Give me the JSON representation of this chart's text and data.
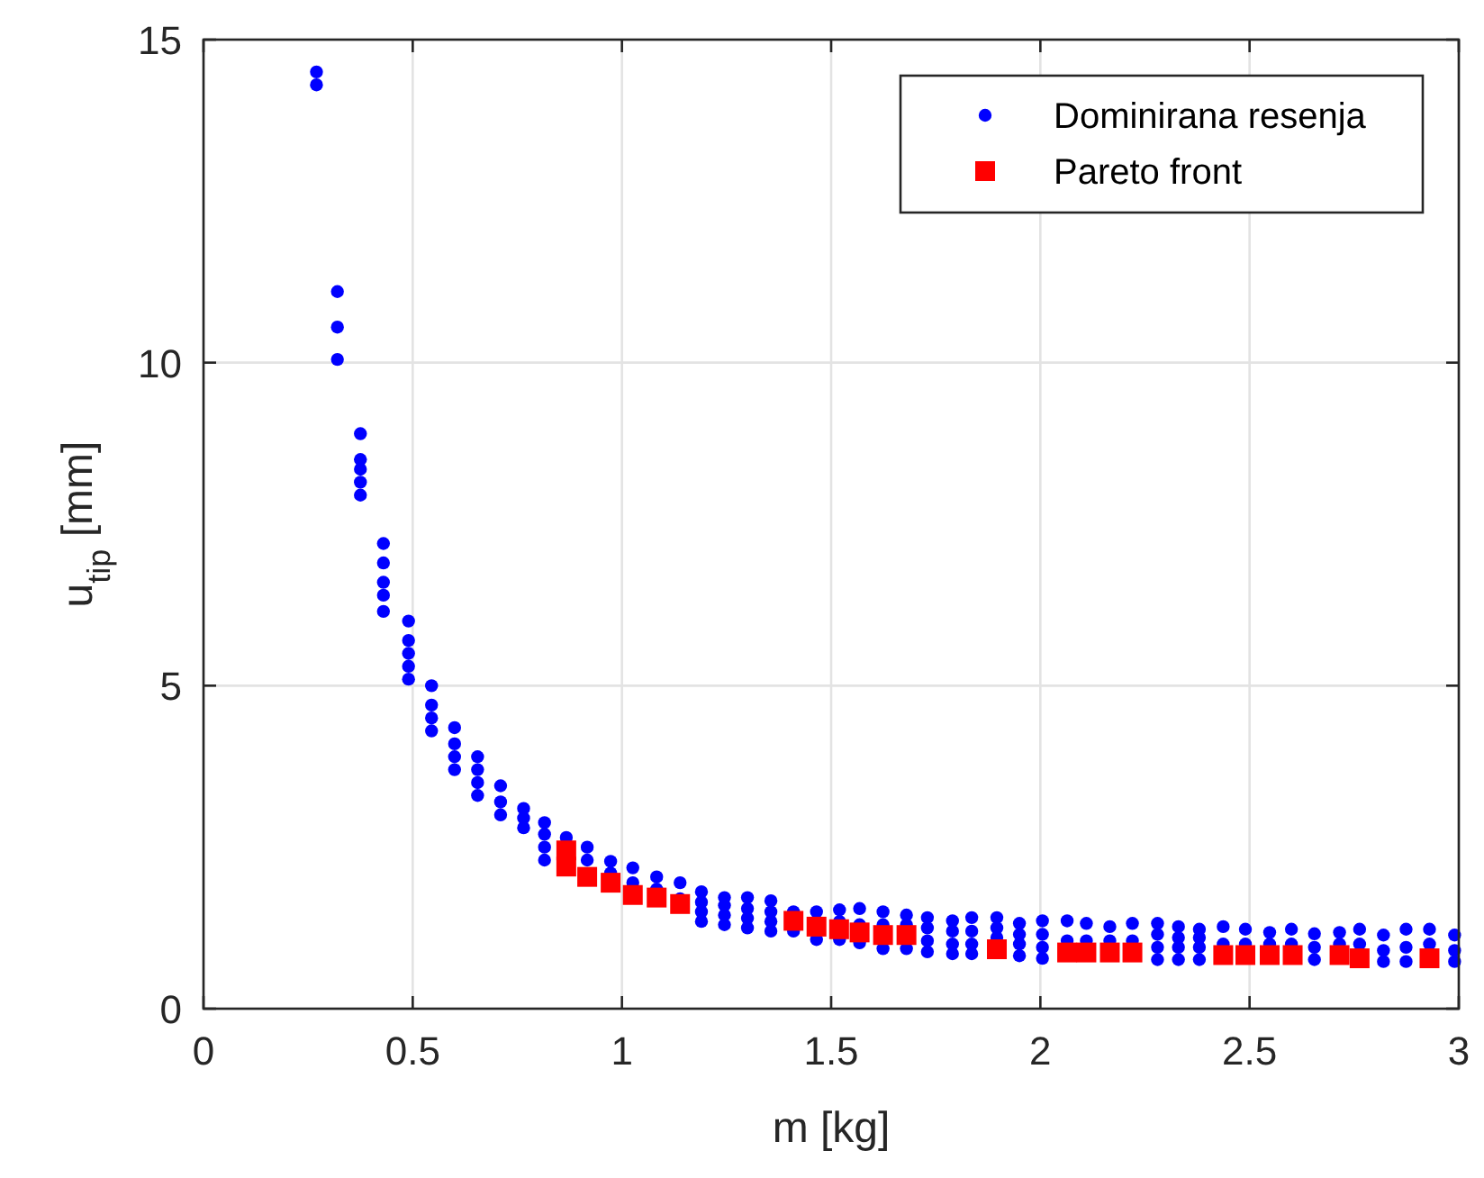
{
  "chart_data": {
    "type": "scatter",
    "xlabel": "m [kg]",
    "ylabel": "u$_{tip}$ [mm]",
    "xlim": [
      0,
      3
    ],
    "xticks": [
      0,
      0.5,
      1,
      1.5,
      2,
      2.5,
      3
    ],
    "ylim": [
      0,
      15
    ],
    "yticks": [
      0,
      5,
      10,
      15
    ],
    "grid": true,
    "legend": "top right",
    "series": [
      {
        "name": "Dominirana resenja",
        "color": "#0000ff",
        "marker": "circle",
        "x": [
          0.27,
          0.27,
          0.32,
          0.32,
          0.32,
          0.375,
          0.375,
          0.375,
          0.375,
          0.375,
          0.43,
          0.43,
          0.43,
          0.43,
          0.43,
          0.49,
          0.49,
          0.49,
          0.49,
          0.49,
          0.545,
          0.545,
          0.545,
          0.545,
          0.6,
          0.6,
          0.6,
          0.6,
          0.655,
          0.655,
          0.655,
          0.655,
          0.71,
          0.71,
          0.71,
          0.765,
          0.765,
          0.765,
          0.815,
          0.815,
          0.815,
          0.815,
          0.867,
          0.917,
          0.917,
          0.973,
          0.973,
          1.026,
          1.026,
          1.083,
          1.083,
          1.139,
          1.139,
          1.19,
          1.19,
          1.19,
          1.19,
          1.245,
          1.245,
          1.245,
          1.245,
          1.3,
          1.3,
          1.3,
          1.3,
          1.356,
          1.356,
          1.356,
          1.356,
          1.41,
          1.41,
          1.465,
          1.465,
          1.52,
          1.52,
          1.52,
          1.568,
          1.568,
          1.568,
          1.624,
          1.624,
          1.624,
          1.68,
          1.68,
          1.68,
          1.73,
          1.73,
          1.73,
          1.73,
          1.79,
          1.79,
          1.79,
          1.79,
          1.836,
          1.836,
          1.836,
          1.836,
          1.896,
          1.896,
          1.896,
          1.95,
          1.95,
          1.95,
          1.95,
          2.005,
          2.005,
          2.005,
          2.005,
          2.064,
          2.064,
          2.11,
          2.11,
          2.166,
          2.166,
          2.22,
          2.22,
          2.28,
          2.28,
          2.28,
          2.28,
          2.33,
          2.33,
          2.33,
          2.33,
          2.38,
          2.38,
          2.38,
          2.38,
          2.437,
          2.437,
          2.49,
          2.49,
          2.548,
          2.548,
          2.6,
          2.6,
          2.655,
          2.655,
          2.655,
          2.715,
          2.715,
          2.763,
          2.763,
          2.82,
          2.82,
          2.82,
          2.874,
          2.874,
          2.874,
          2.93,
          2.93,
          2.99,
          2.99,
          2.99
        ],
        "values": [
          14.3,
          14.5,
          10.05,
          10.55,
          11.1,
          7.95,
          8.15,
          8.35,
          8.5,
          8.9,
          6.15,
          6.4,
          6.6,
          6.9,
          7.2,
          5.1,
          5.3,
          5.5,
          5.7,
          6.0,
          4.3,
          4.5,
          4.7,
          5.0,
          3.7,
          3.9,
          4.1,
          4.35,
          3.3,
          3.5,
          3.7,
          3.9,
          3.0,
          3.2,
          3.45,
          2.8,
          2.95,
          3.1,
          2.3,
          2.5,
          2.7,
          2.88,
          2.65,
          2.3,
          2.5,
          2.1,
          2.28,
          1.95,
          2.18,
          1.85,
          2.04,
          1.7,
          1.95,
          1.35,
          1.5,
          1.65,
          1.81,
          1.3,
          1.45,
          1.6,
          1.72,
          1.25,
          1.4,
          1.55,
          1.72,
          1.2,
          1.35,
          1.5,
          1.67,
          1.2,
          1.5,
          1.07,
          1.5,
          1.07,
          1.35,
          1.53,
          1.02,
          1.3,
          1.55,
          0.93,
          1.3,
          1.5,
          0.93,
          1.3,
          1.45,
          0.88,
          1.05,
          1.25,
          1.41,
          0.85,
          1.0,
          1.2,
          1.36,
          0.85,
          1.0,
          1.2,
          1.41,
          1.1,
          1.25,
          1.41,
          0.82,
          1.0,
          1.15,
          1.32,
          0.78,
          0.95,
          1.15,
          1.36,
          1.05,
          1.36,
          1.05,
          1.32,
          1.05,
          1.27,
          1.05,
          1.32,
          0.76,
          0.95,
          1.15,
          1.32,
          0.76,
          0.95,
          1.1,
          1.27,
          0.76,
          0.95,
          1.1,
          1.23,
          1.0,
          1.27,
          1.0,
          1.23,
          1.0,
          1.18,
          1.0,
          1.23,
          0.76,
          0.95,
          1.16,
          1.0,
          1.18,
          1.0,
          1.23,
          0.73,
          0.9,
          1.14,
          0.73,
          0.95,
          1.23,
          1.0,
          1.23,
          0.73,
          0.9,
          1.14
        ]
      },
      {
        "name": "Pareto front",
        "color": "#ff0000",
        "marker": "square",
        "x": [
          0.867,
          0.867,
          0.917,
          0.973,
          1.026,
          1.083,
          1.139,
          1.41,
          1.465,
          1.519,
          1.568,
          1.624,
          1.68,
          1.896,
          2.064,
          2.11,
          2.166,
          2.22,
          2.437,
          2.49,
          2.548,
          2.603,
          2.715,
          2.763,
          2.93
        ],
        "values": [
          2.45,
          2.2,
          2.04,
          1.95,
          1.76,
          1.72,
          1.62,
          1.36,
          1.27,
          1.23,
          1.18,
          1.14,
          1.14,
          0.92,
          0.87,
          0.87,
          0.87,
          0.87,
          0.83,
          0.83,
          0.83,
          0.83,
          0.83,
          0.78,
          0.78
        ]
      }
    ]
  }
}
